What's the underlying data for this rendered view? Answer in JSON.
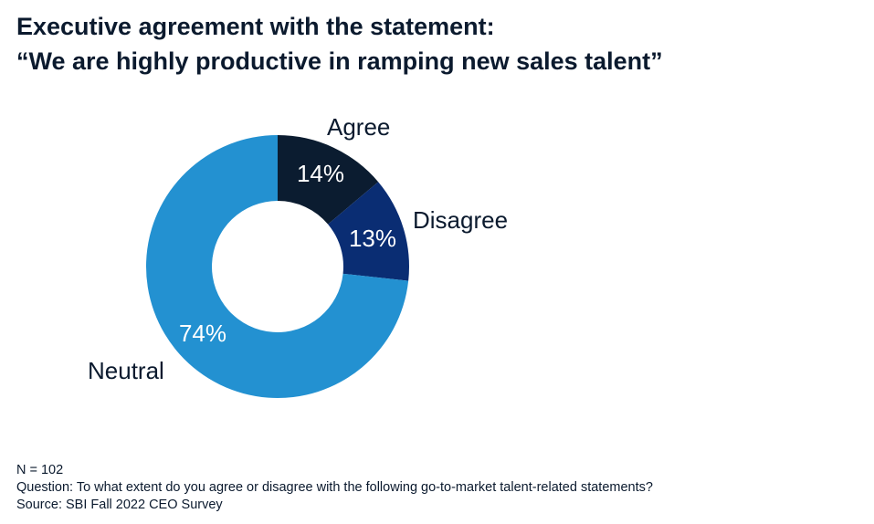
{
  "title": {
    "line1": "Executive agreement with the statement:",
    "line2": "“We are highly productive in ramping new sales talent”"
  },
  "chart_data": {
    "type": "pie",
    "donut": true,
    "categories": [
      "Agree",
      "Disagree",
      "Neutral"
    ],
    "values": [
      14,
      13,
      74
    ],
    "value_labels": [
      "14%",
      "13%",
      "74%"
    ],
    "colors": [
      "#0b1c30",
      "#0a2d73",
      "#2391d1"
    ],
    "legend": "none",
    "start": "top",
    "direction": "clockwise"
  },
  "footer": {
    "sample": "N = 102",
    "question": "Question: To what extent do you agree or disagree with the following go-to-market talent-related statements?",
    "source": "Source: SBI Fall 2022 CEO Survey"
  }
}
